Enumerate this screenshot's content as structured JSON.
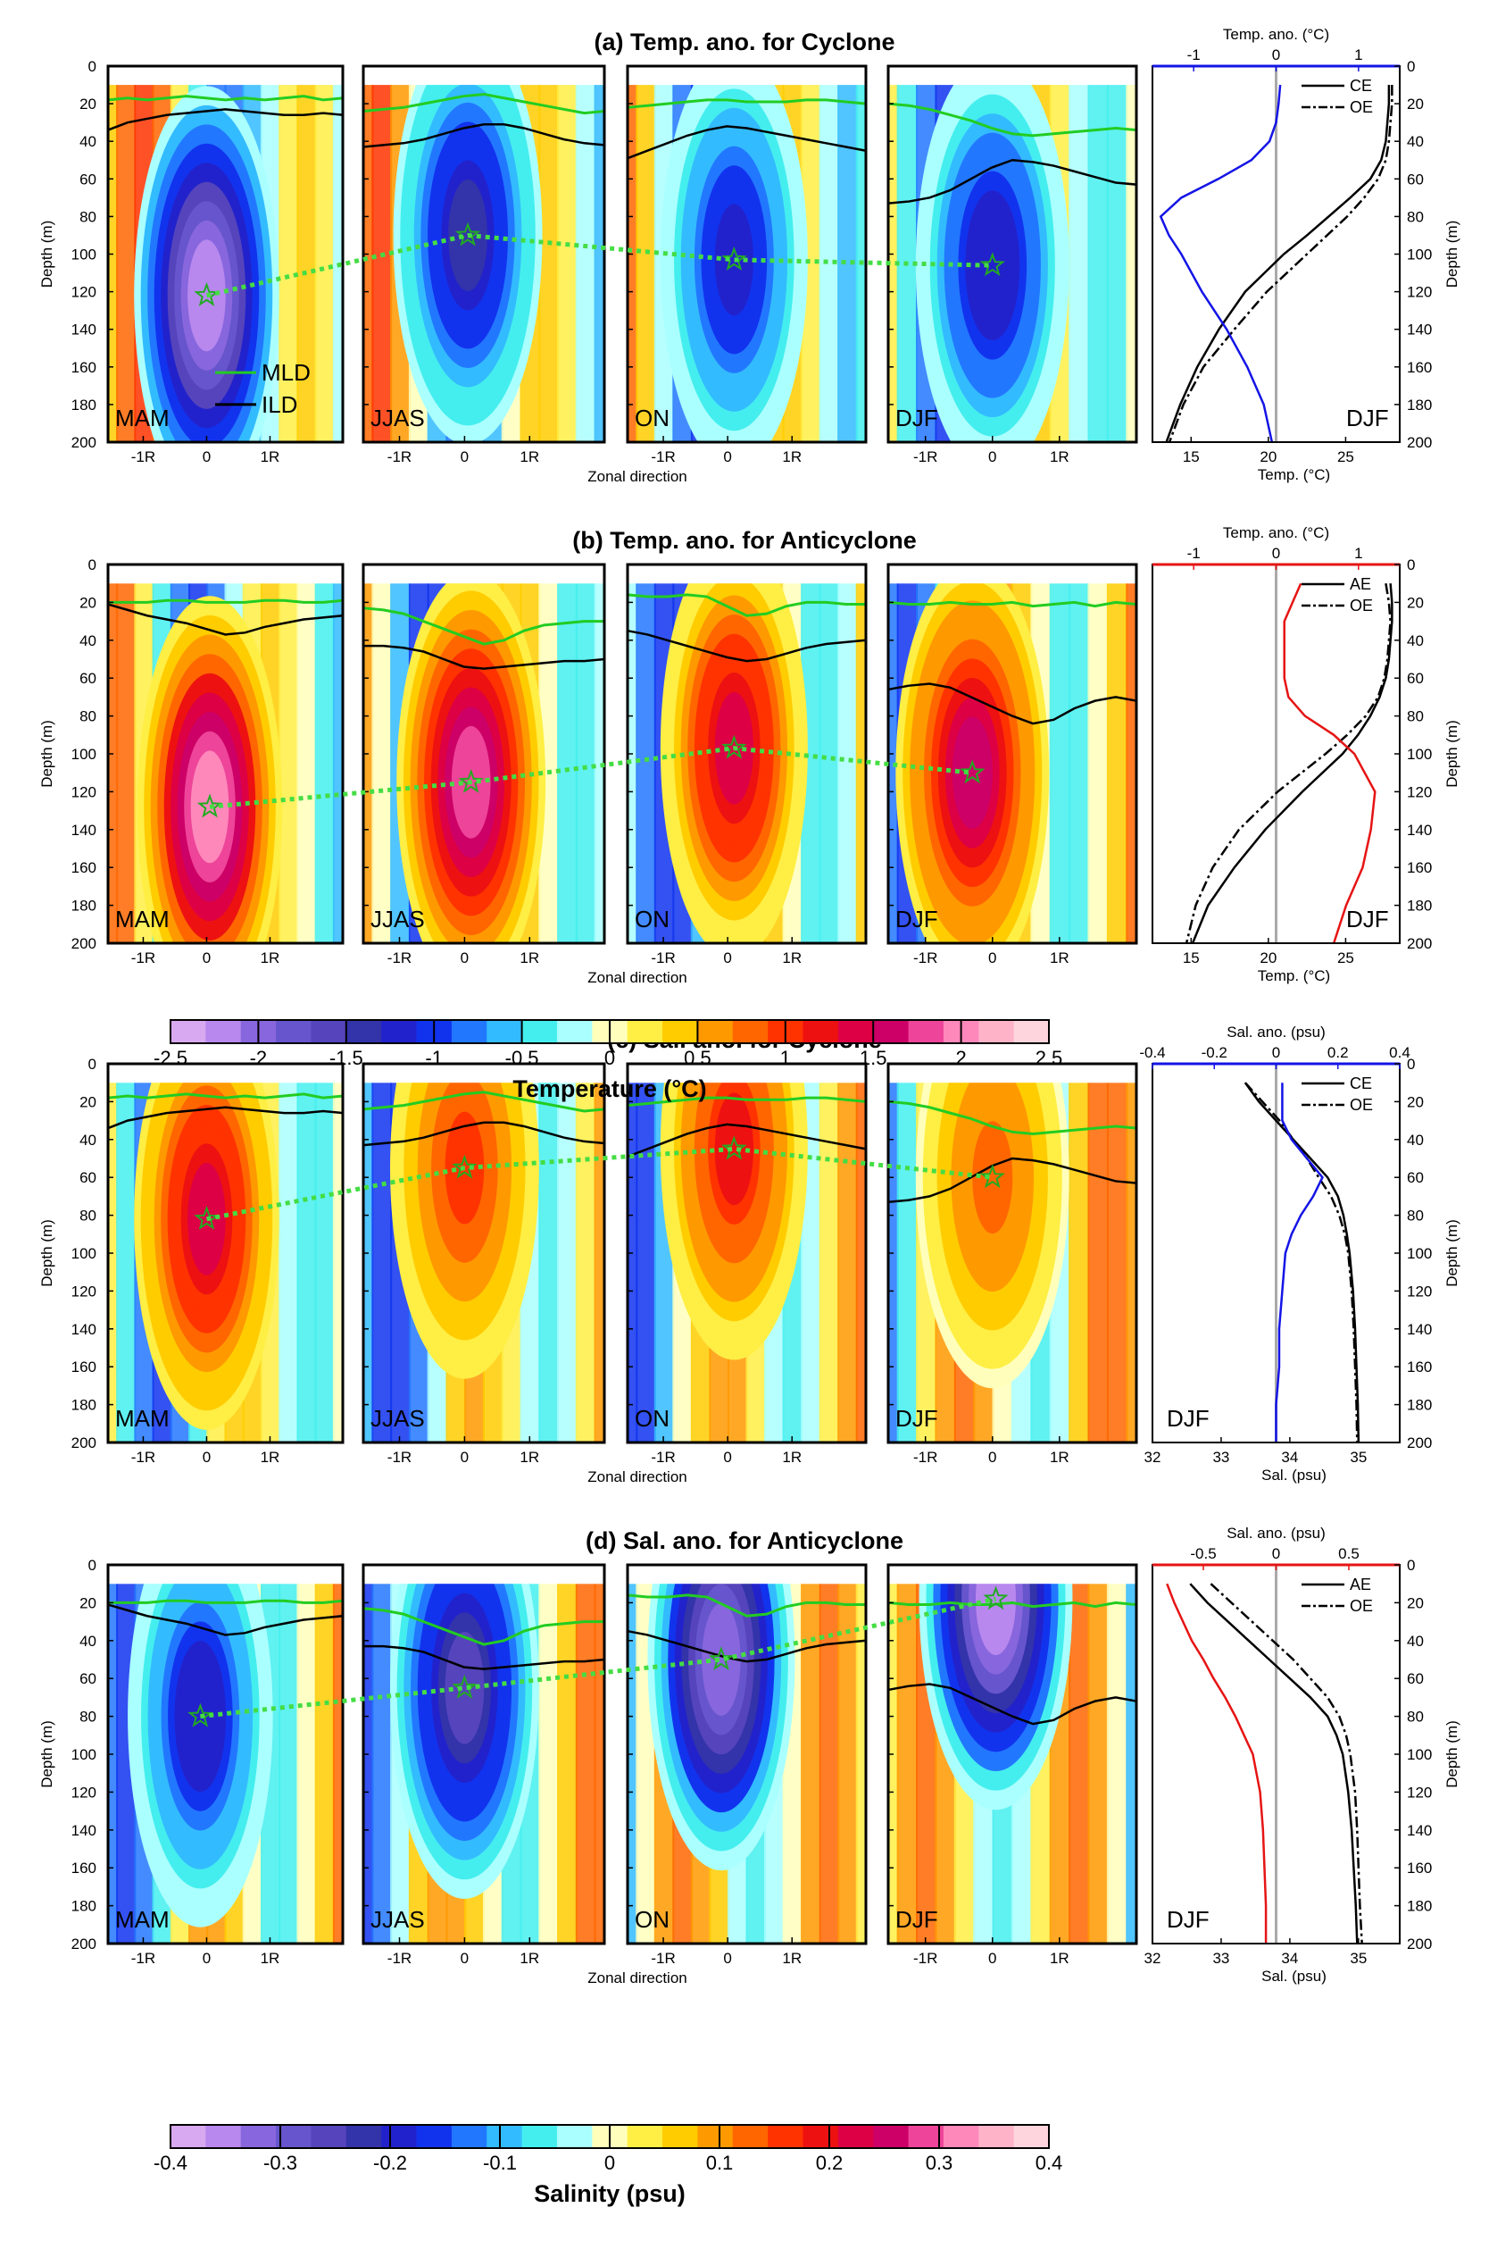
{
  "chart_data": [
    {
      "id": "a",
      "type": "contour",
      "title": "(a) Temp. ano. for  Cyclone",
      "variable": "temperature",
      "xlabel": "Zonal direction",
      "ylabel": "Depth (m)",
      "ylim": [
        0,
        200
      ],
      "yticks": [
        0,
        20,
        40,
        60,
        80,
        100,
        120,
        140,
        160,
        180,
        200
      ],
      "xticks": [
        "-1R",
        "0",
        "1R"
      ],
      "legend": [
        "MLD",
        "ILD"
      ],
      "seasons": [
        {
          "name": "MAM",
          "core_x": 0.0,
          "core_depth": 122,
          "amp": -2.3,
          "mld": [
            18,
            17,
            18,
            17,
            16,
            17,
            18,
            17,
            18,
            17,
            16,
            18,
            17
          ],
          "ild": [
            34,
            30,
            28,
            26,
            25,
            24,
            23,
            24,
            25,
            26,
            26,
            25,
            26
          ]
        },
        {
          "name": "JJAS",
          "core_x": 0.05,
          "core_depth": 90,
          "amp": -1.4,
          "mld": [
            24,
            23,
            22,
            20,
            18,
            16,
            15,
            17,
            19,
            21,
            23,
            25,
            24
          ],
          "ild": [
            43,
            42,
            41,
            39,
            36,
            33,
            31,
            31,
            33,
            36,
            39,
            41,
            42
          ]
        },
        {
          "name": "ON",
          "core_x": 0.1,
          "core_depth": 103,
          "amp": -1.2,
          "mld": [
            22,
            21,
            20,
            19,
            18,
            18,
            19,
            19,
            19,
            18,
            18,
            19,
            20
          ],
          "ild": [
            49,
            45,
            41,
            37,
            34,
            32,
            33,
            35,
            37,
            39,
            41,
            43,
            45
          ]
        },
        {
          "name": "DJF",
          "core_x": 0.0,
          "core_depth": 106,
          "amp": -1.3,
          "mld": [
            20,
            21,
            23,
            26,
            29,
            33,
            36,
            37,
            36,
            35,
            34,
            33,
            34
          ],
          "ild": [
            73,
            72,
            70,
            66,
            60,
            54,
            50,
            51,
            53,
            56,
            59,
            62,
            63
          ]
        }
      ],
      "profile": {
        "season_label": "DJF",
        "top_axis_label": "Temp. ano. (°C)",
        "top_ticks": [
          -1,
          0,
          1
        ],
        "top_range": [
          -1.5,
          1.5
        ],
        "top_color": "#1414e6",
        "bottom_axis_label": "Temp. (°C)",
        "bottom_ticks": [
          15,
          20,
          25
        ],
        "bottom_range": [
          12.5,
          28.5
        ],
        "legend": [
          "CE",
          "OE"
        ],
        "depth": [
          10,
          20,
          30,
          40,
          50,
          60,
          70,
          80,
          90,
          100,
          120,
          140,
          160,
          180,
          200
        ],
        "ce": [
          27.8,
          27.8,
          27.7,
          27.6,
          27.3,
          26.6,
          25.3,
          23.9,
          22.5,
          21.0,
          18.5,
          16.8,
          15.4,
          14.3,
          13.4
        ],
        "oe": [
          28.0,
          28.0,
          27.9,
          27.8,
          27.6,
          27.1,
          26.2,
          25.1,
          23.8,
          22.5,
          19.9,
          17.8,
          15.8,
          14.5,
          13.6
        ],
        "ano": [
          0.05,
          0.03,
          0.0,
          -0.08,
          -0.3,
          -0.7,
          -1.15,
          -1.4,
          -1.3,
          -1.15,
          -0.9,
          -0.6,
          -0.35,
          -0.15,
          -0.05
        ]
      }
    },
    {
      "id": "b",
      "type": "contour",
      "title": "(b) Temp. ano. for  Anticyclone",
      "variable": "temperature",
      "xlabel": "Zonal direction",
      "ylabel": "Depth (m)",
      "ylim": [
        0,
        200
      ],
      "yticks": [
        0,
        20,
        40,
        60,
        80,
        100,
        120,
        140,
        160,
        180,
        200
      ],
      "xticks": [
        "-1R",
        "0",
        "1R"
      ],
      "seasons": [
        {
          "name": "MAM",
          "core_x": 0.05,
          "core_depth": 128,
          "amp": 2.0,
          "mld": [
            20,
            20,
            20,
            19,
            19,
            20,
            20,
            20,
            19,
            19,
            20,
            20,
            19
          ],
          "ild": [
            21,
            24,
            27,
            29,
            31,
            34,
            37,
            36,
            33,
            31,
            29,
            28,
            27
          ]
        },
        {
          "name": "JJAS",
          "core_x": 0.1,
          "core_depth": 115,
          "amp": 1.7,
          "mld": [
            23,
            24,
            26,
            30,
            34,
            38,
            42,
            40,
            35,
            32,
            31,
            30,
            30
          ],
          "ild": [
            43,
            43,
            44,
            46,
            50,
            54,
            55,
            54,
            53,
            52,
            51,
            51,
            50
          ]
        },
        {
          "name": "ON",
          "core_x": 0.1,
          "core_depth": 97,
          "amp": 1.35,
          "mld": [
            16,
            17,
            17,
            16,
            17,
            22,
            27,
            26,
            22,
            20,
            20,
            21,
            21
          ],
          "ild": [
            35,
            37,
            40,
            43,
            46,
            49,
            51,
            50,
            47,
            44,
            42,
            41,
            40
          ]
        },
        {
          "name": "DJF",
          "core_x": -0.3,
          "core_depth": 110,
          "amp": 1.5,
          "mld": [
            20,
            21,
            21,
            20,
            21,
            21,
            20,
            22,
            21,
            20,
            22,
            20,
            21
          ],
          "ild": [
            66,
            64,
            63,
            65,
            70,
            75,
            80,
            84,
            82,
            76,
            72,
            70,
            72
          ]
        }
      ],
      "profile": {
        "season_label": "DJF",
        "top_axis_label": "Temp. ano. (°C)",
        "top_ticks": [
          -1,
          0,
          1
        ],
        "top_range": [
          -1.5,
          1.5
        ],
        "top_color": "#e61414",
        "bottom_axis_label": "Temp. (°C)",
        "bottom_ticks": [
          15,
          20,
          25
        ],
        "bottom_range": [
          12.5,
          28.5
        ],
        "legend": [
          "AE",
          "OE"
        ],
        "depth": [
          10,
          20,
          30,
          40,
          50,
          60,
          70,
          80,
          90,
          100,
          120,
          140,
          160,
          180,
          200
        ],
        "ae": [
          27.9,
          28.0,
          28.0,
          27.9,
          27.8,
          27.6,
          27.2,
          26.6,
          25.8,
          24.8,
          22.2,
          19.8,
          17.8,
          16.1,
          15.1
        ],
        "oe": [
          27.6,
          27.8,
          27.9,
          27.8,
          27.7,
          27.5,
          27.1,
          26.3,
          25.1,
          23.7,
          20.6,
          18.1,
          16.4,
          15.3,
          14.7
        ],
        "ano": [
          0.3,
          0.2,
          0.1,
          0.1,
          0.1,
          0.1,
          0.15,
          0.35,
          0.7,
          0.95,
          1.2,
          1.15,
          1.05,
          0.85,
          0.7
        ]
      }
    },
    {
      "id": "c",
      "type": "contour",
      "title": "(c) Sal. ano. for  Cyclone",
      "variable": "salinity",
      "xlabel": "Zonal direction",
      "ylabel": "Depth (m)",
      "ylim": [
        0,
        200
      ],
      "yticks": [
        0,
        20,
        40,
        60,
        80,
        100,
        120,
        140,
        160,
        180,
        200
      ],
      "xticks": [
        "-1R",
        "0",
        "1R"
      ],
      "seasons": [
        {
          "name": "MAM",
          "core_x": 0.0,
          "core_depth": 82,
          "amp": 0.22,
          "mld": [
            18,
            17,
            18,
            17,
            16,
            17,
            18,
            17,
            18,
            17,
            16,
            18,
            17
          ],
          "ild": [
            34,
            30,
            28,
            26,
            25,
            24,
            23,
            24,
            25,
            26,
            26,
            25,
            26
          ]
        },
        {
          "name": "JJAS",
          "core_x": 0.0,
          "core_depth": 55,
          "amp": 0.15,
          "mld": [
            24,
            23,
            22,
            20,
            18,
            16,
            15,
            17,
            19,
            21,
            23,
            25,
            24
          ],
          "ild": [
            43,
            42,
            41,
            39,
            36,
            33,
            31,
            31,
            33,
            36,
            39,
            41,
            42
          ]
        },
        {
          "name": "ON",
          "core_x": 0.1,
          "core_depth": 45,
          "amp": 0.18,
          "mld": [
            22,
            21,
            20,
            19,
            18,
            18,
            19,
            19,
            19,
            18,
            18,
            19,
            20
          ],
          "ild": [
            49,
            45,
            41,
            37,
            34,
            32,
            33,
            35,
            37,
            39,
            41,
            43,
            45
          ]
        },
        {
          "name": "DJF",
          "core_x": 0.0,
          "core_depth": 60,
          "amp": 0.12,
          "mld": [
            20,
            21,
            23,
            26,
            29,
            33,
            36,
            37,
            36,
            35,
            34,
            33,
            34
          ],
          "ild": [
            73,
            72,
            70,
            66,
            60,
            54,
            50,
            51,
            53,
            56,
            59,
            62,
            63
          ]
        }
      ],
      "profile": {
        "season_label": "DJF",
        "top_axis_label": "Sal. ano. (psu)",
        "top_ticks": [
          -0.4,
          -0.2,
          0,
          0.2,
          0.4
        ],
        "top_tick_labels": [
          "-0.4",
          "-0.2",
          "0",
          "0.2",
          "0.4"
        ],
        "top_range": [
          -0.4,
          0.4
        ],
        "top_color": "#1414e6",
        "bottom_axis_label": "Sal. (psu)",
        "bottom_ticks": [
          32,
          33,
          34,
          35
        ],
        "bottom_range": [
          32,
          35.6
        ],
        "legend": [
          "CE",
          "OE"
        ],
        "depth": [
          10,
          20,
          30,
          40,
          50,
          60,
          70,
          80,
          90,
          100,
          120,
          140,
          160,
          180,
          200
        ],
        "ce": [
          33.35,
          33.55,
          33.8,
          34.05,
          34.3,
          34.55,
          34.7,
          34.78,
          34.83,
          34.87,
          34.92,
          34.95,
          34.97,
          34.99,
          35.0
        ],
        "oe": [
          33.35,
          33.6,
          33.85,
          34.05,
          34.25,
          34.42,
          34.6,
          34.72,
          34.8,
          34.85,
          34.9,
          34.93,
          34.95,
          34.97,
          34.98
        ],
        "ano": [
          0.02,
          0.02,
          0.02,
          0.05,
          0.1,
          0.15,
          0.12,
          0.08,
          0.05,
          0.03,
          0.02,
          0.01,
          0.01,
          0.0,
          0.0
        ]
      }
    },
    {
      "id": "d",
      "type": "contour",
      "title": "(d) Sal. ano. for  Anticyclone",
      "variable": "salinity",
      "xlabel": "Zonal direction",
      "ylabel": "Depth (m)",
      "ylim": [
        0,
        200
      ],
      "yticks": [
        0,
        20,
        40,
        60,
        80,
        100,
        120,
        140,
        160,
        180,
        200
      ],
      "xticks": [
        "-1R",
        "0",
        "1R"
      ],
      "seasons": [
        {
          "name": "MAM",
          "core_x": -0.1,
          "core_depth": 80,
          "amp": -0.2,
          "mld": [
            20,
            20,
            20,
            19,
            19,
            20,
            20,
            20,
            19,
            19,
            20,
            20,
            19
          ],
          "ild": [
            21,
            24,
            27,
            29,
            31,
            34,
            37,
            36,
            33,
            31,
            29,
            28,
            27
          ]
        },
        {
          "name": "JJAS",
          "core_x": 0.0,
          "core_depth": 65,
          "amp": -0.26,
          "mld": [
            23,
            24,
            26,
            30,
            34,
            38,
            42,
            40,
            35,
            32,
            31,
            30,
            30
          ],
          "ild": [
            43,
            43,
            44,
            46,
            50,
            54,
            55,
            54,
            53,
            52,
            51,
            51,
            50
          ]
        },
        {
          "name": "ON",
          "core_x": -0.1,
          "core_depth": 50,
          "amp": -0.33,
          "mld": [
            16,
            17,
            17,
            16,
            17,
            22,
            27,
            26,
            22,
            20,
            20,
            21,
            21
          ],
          "ild": [
            35,
            37,
            40,
            43,
            46,
            49,
            51,
            50,
            47,
            44,
            42,
            41,
            40
          ]
        },
        {
          "name": "DJF",
          "core_x": 0.05,
          "core_depth": 18,
          "amp": -0.35,
          "mld": [
            20,
            21,
            21,
            20,
            21,
            21,
            20,
            22,
            21,
            20,
            22,
            20,
            21
          ],
          "ild": [
            66,
            64,
            63,
            65,
            70,
            75,
            80,
            84,
            82,
            76,
            72,
            70,
            72
          ]
        }
      ],
      "profile": {
        "season_label": "DJF",
        "top_axis_label": "Sal. ano. (psu)",
        "top_ticks": [
          -0.5,
          0,
          0.5
        ],
        "top_tick_labels": [
          "-0.5",
          "0",
          "0.5"
        ],
        "top_range": [
          -0.85,
          0.85
        ],
        "top_color": "#e61414",
        "bottom_axis_label": "Sal. (psu)",
        "bottom_ticks": [
          32,
          33,
          34,
          35
        ],
        "bottom_range": [
          32,
          35.6
        ],
        "legend": [
          "AE",
          "OE"
        ],
        "depth": [
          10,
          20,
          30,
          40,
          50,
          60,
          70,
          80,
          90,
          100,
          120,
          140,
          160,
          180,
          200
        ],
        "ae": [
          32.55,
          32.8,
          33.1,
          33.4,
          33.7,
          34.0,
          34.3,
          34.55,
          34.68,
          34.77,
          34.85,
          34.9,
          34.93,
          34.96,
          34.98
        ],
        "oe": [
          32.85,
          33.15,
          33.45,
          33.75,
          34.05,
          34.3,
          34.55,
          34.72,
          34.82,
          34.88,
          34.95,
          34.98,
          35.0,
          35.02,
          35.05
        ],
        "ano": [
          -0.75,
          -0.7,
          -0.64,
          -0.58,
          -0.5,
          -0.43,
          -0.35,
          -0.28,
          -0.22,
          -0.16,
          -0.11,
          -0.09,
          -0.08,
          -0.07,
          -0.07
        ]
      }
    }
  ],
  "colorbars": [
    {
      "variable": "temperature",
      "label": "Temperature (°C)",
      "min": -2.5,
      "max": 2.5,
      "ticks": [
        -2.5,
        -2,
        -1.5,
        -1,
        -0.5,
        0,
        0.5,
        1,
        1.5,
        2,
        2.5
      ],
      "tick_labels": [
        "-2.5",
        "-2",
        "-1.5",
        "-1",
        "-0.5",
        "0",
        "0.5",
        "1",
        "1.5",
        "2",
        "2.5"
      ]
    },
    {
      "variable": "salinity",
      "label": "Salinity (psu)",
      "min": -0.4,
      "max": 0.4,
      "ticks": [
        -0.4,
        -0.3,
        -0.2,
        -0.1,
        0,
        0.1,
        0.2,
        0.3,
        0.4
      ],
      "tick_labels": [
        "-0.4",
        "-0.3",
        "-0.2",
        "-0.1",
        "0",
        "0.1",
        "0.2",
        "0.3",
        "0.4"
      ]
    }
  ],
  "colors": {
    "mld_line": "#22cc22",
    "ild_line": "#000000",
    "core_track": "#44dd44",
    "colormap": [
      "#d8a8f0",
      "#b888ee",
      "#8866dd",
      "#6655cc",
      "#5544bb",
      "#3333aa",
      "#2222cc",
      "#1133ee",
      "#2277ff",
      "#33bbff",
      "#44eeee",
      "#aaffff",
      "#ffffbb",
      "#ffee44",
      "#ffcc00",
      "#ff9900",
      "#ff6600",
      "#ff3300",
      "#ee1111",
      "#dd0044",
      "#cc0066",
      "#ee4499",
      "#ff88bb",
      "#ffb3c8",
      "#ffd5dd"
    ]
  }
}
